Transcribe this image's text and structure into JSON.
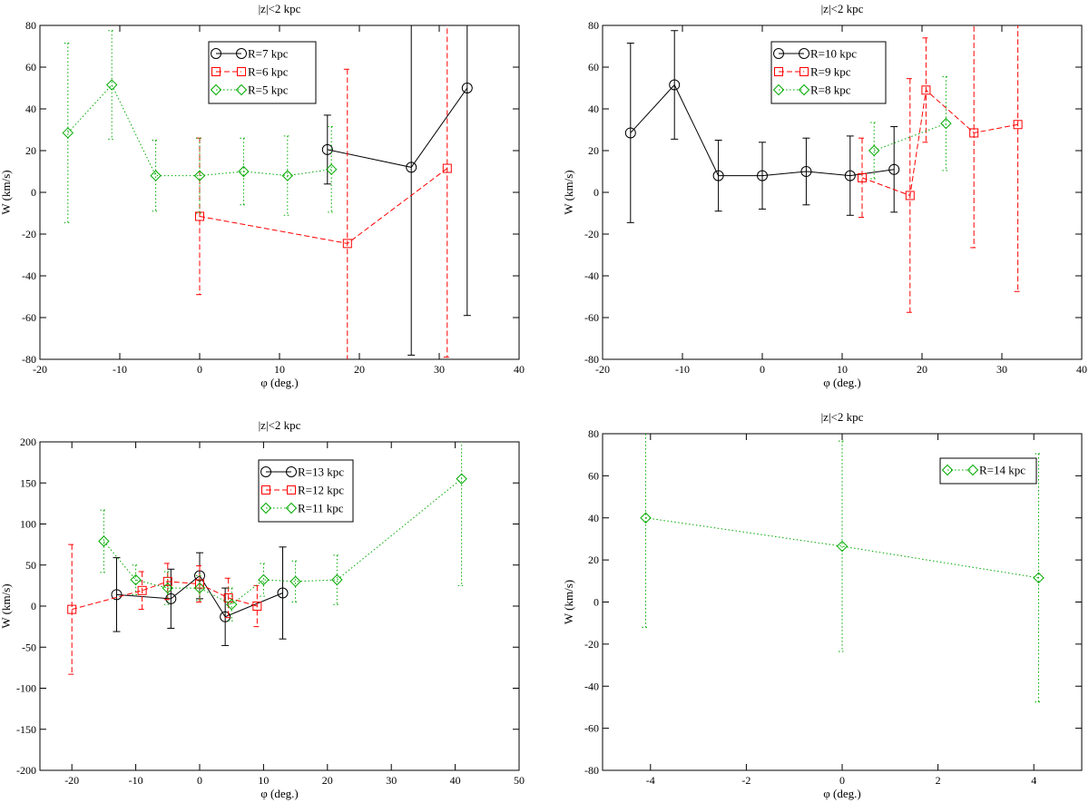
{
  "chart_data": [
    {
      "type": "line",
      "title": "|z|<2 kpc",
      "xlabel": "φ (deg.)",
      "ylabel": "W (km/s)",
      "xlim": [
        -20,
        40
      ],
      "ylim": [
        -80,
        80
      ],
      "xticks": [
        -20,
        -10,
        0,
        10,
        20,
        30,
        40
      ],
      "yticks": [
        -80,
        -60,
        -40,
        -20,
        0,
        20,
        40,
        60,
        80
      ],
      "legend_position": "top-center",
      "series": [
        {
          "name": "R=7 kpc",
          "color": "#000000",
          "marker": "circle",
          "dash": "solid",
          "x": [
            16,
            26.5,
            33.5
          ],
          "y": [
            20.5,
            12,
            50
          ],
          "err": [
            16.5,
            90,
            109
          ]
        },
        {
          "name": "R=6 kpc",
          "color": "#ff0000",
          "marker": "square",
          "dash": "dashed",
          "x": [
            0,
            18.5,
            31
          ],
          "y": [
            -11.5,
            -24.5,
            11.5
          ],
          "err": [
            37.5,
            83.5,
            90.5
          ]
        },
        {
          "name": "R=5 kpc",
          "color": "#00aa00",
          "marker": "diamond",
          "dash": "dotted",
          "x": [
            -16.5,
            -11,
            -5.5,
            0,
            5.5,
            11,
            16.5
          ],
          "y": [
            28.5,
            51.5,
            8,
            8,
            10,
            8,
            11
          ],
          "err": [
            43,
            26,
            17,
            18,
            16,
            19,
            20.5
          ]
        }
      ]
    },
    {
      "type": "line",
      "title": "|z|<2 kpc",
      "xlabel": "φ (deg.)",
      "ylabel": "W (km/s)",
      "xlim": [
        -20,
        40
      ],
      "ylim": [
        -80,
        80
      ],
      "xticks": [
        -20,
        -10,
        0,
        10,
        20,
        30,
        40
      ],
      "yticks": [
        -80,
        -60,
        -40,
        -20,
        0,
        20,
        40,
        60,
        80
      ],
      "legend_position": "top-center",
      "series": [
        {
          "name": "R=10 kpc",
          "color": "#000000",
          "marker": "circle",
          "dash": "solid",
          "x": [
            -16.5,
            -11,
            -5.5,
            0,
            5.5,
            11,
            16.5
          ],
          "y": [
            28.5,
            51.5,
            8,
            8,
            10,
            8,
            11
          ],
          "err": [
            43,
            26,
            17,
            16,
            16,
            19,
            20.5
          ]
        },
        {
          "name": "R=9 kpc",
          "color": "#ff0000",
          "marker": "square",
          "dash": "dashed",
          "x": [
            12.5,
            18.5,
            20.5,
            26.5,
            32
          ],
          "y": [
            7,
            -1.5,
            49,
            28.5,
            32.5
          ],
          "err": [
            19,
            56,
            25,
            55,
            80
          ]
        },
        {
          "name": "R=8 kpc",
          "color": "#00aa00",
          "marker": "diamond",
          "dash": "dotted",
          "x": [
            14,
            23
          ],
          "y": [
            20,
            33
          ],
          "err": [
            13.5,
            22.5
          ]
        }
      ]
    },
    {
      "type": "line",
      "title": "|z|<2 kpc",
      "xlabel": "φ (deg.)",
      "ylabel": "W (km/s)",
      "xlim": [
        -25,
        50
      ],
      "ylim": [
        -200,
        200
      ],
      "xticks": [
        -20,
        -10,
        0,
        10,
        20,
        30,
        40,
        50
      ],
      "yticks": [
        -200,
        -150,
        -100,
        -50,
        0,
        50,
        100,
        150,
        200
      ],
      "legend_position": "top-center",
      "series": [
        {
          "name": "R=13 kpc",
          "color": "#000000",
          "marker": "circle",
          "dash": "solid",
          "x": [
            -13,
            -4.5,
            0,
            4,
            13
          ],
          "y": [
            14,
            9,
            37,
            -13,
            16
          ],
          "err": [
            45,
            36,
            28,
            35,
            56
          ]
        },
        {
          "name": "R=12 kpc",
          "color": "#ff0000",
          "marker": "square",
          "dash": "dashed",
          "x": [
            -20,
            -9,
            -5,
            0,
            4.5,
            9
          ],
          "y": [
            -4,
            19,
            30,
            27,
            10,
            0
          ],
          "err": [
            79,
            23,
            22,
            22,
            24,
            25
          ]
        },
        {
          "name": "R=11 kpc",
          "color": "#00aa00",
          "marker": "diamond",
          "dash": "dotted",
          "x": [
            -15,
            -10,
            -5,
            0,
            5,
            10,
            15,
            21.5,
            41
          ],
          "y": [
            79,
            32,
            22,
            22,
            2,
            32,
            30,
            32,
            155
          ],
          "err": [
            38,
            18,
            20,
            15,
            20,
            20,
            25,
            30,
            130
          ]
        }
      ]
    },
    {
      "type": "line",
      "title": "|z|<2 kpc",
      "xlabel": "φ (deg.)",
      "ylabel": "W (km/s)",
      "xlim": [
        -5,
        5
      ],
      "ylim": [
        -80,
        80
      ],
      "xticks": [
        -4,
        -2,
        0,
        2,
        4
      ],
      "yticks": [
        -80,
        -60,
        -40,
        -20,
        0,
        20,
        40,
        60,
        80
      ],
      "legend_position": "top-right",
      "series": [
        {
          "name": "R=14 kpc",
          "color": "#00aa00",
          "marker": "diamond",
          "dash": "dotted",
          "x": [
            -4.1,
            0,
            4.1
          ],
          "y": [
            40,
            26.5,
            11.5
          ],
          "err": [
            52,
            50,
            59
          ]
        }
      ]
    }
  ]
}
